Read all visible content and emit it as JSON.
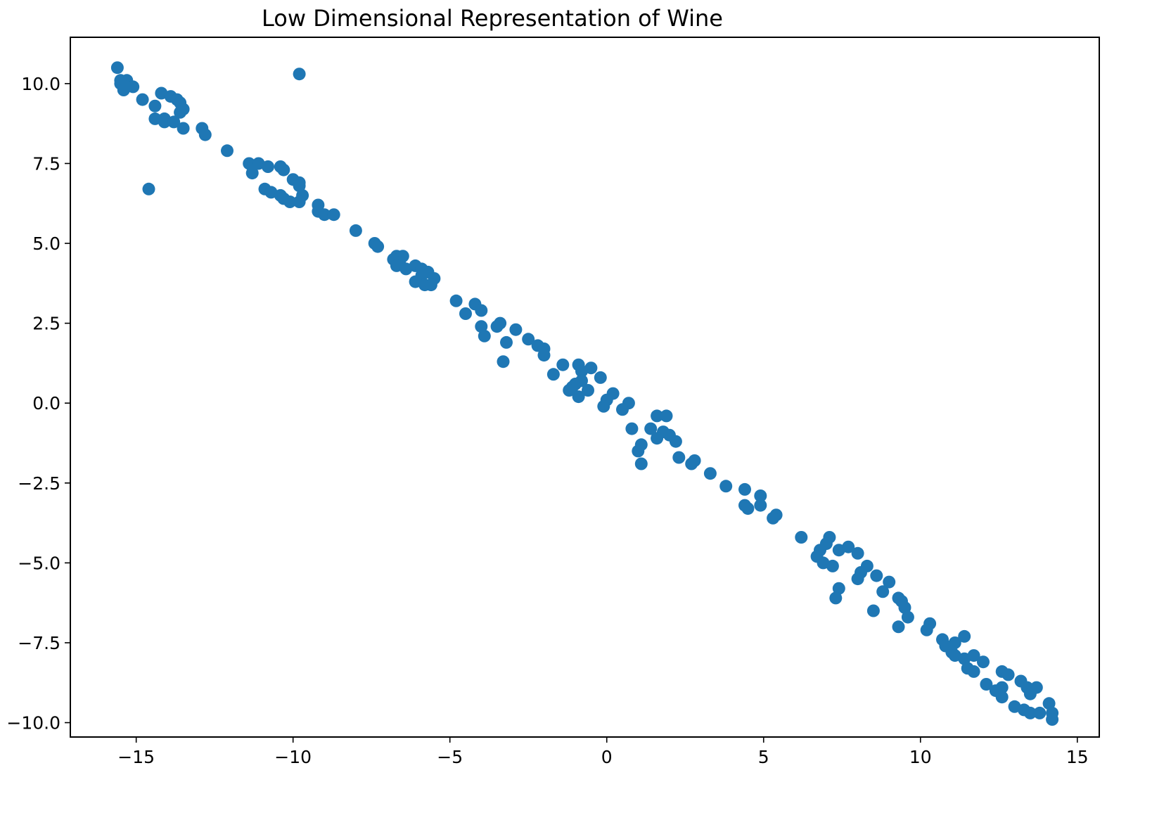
{
  "chart_data": {
    "type": "scatter",
    "title": "Low Dimensional Representation of Wine",
    "xlabel": "",
    "ylabel": "",
    "xlim": [
      -17.1,
      15.7
    ],
    "ylim": [
      -10.45,
      11.45
    ],
    "grid": false,
    "legend": "none",
    "point_color": "#1f77b4",
    "x_ticks": [
      {
        "value": -15,
        "label": "−15"
      },
      {
        "value": -10,
        "label": "−10"
      },
      {
        "value": -5,
        "label": "−5"
      },
      {
        "value": 0,
        "label": "0"
      },
      {
        "value": 5,
        "label": "5"
      },
      {
        "value": 10,
        "label": "10"
      },
      {
        "value": 15,
        "label": "15"
      }
    ],
    "y_ticks": [
      {
        "value": 10.0,
        "label": "10.0"
      },
      {
        "value": 7.5,
        "label": "7.5"
      },
      {
        "value": 5.0,
        "label": "5.0"
      },
      {
        "value": 2.5,
        "label": "2.5"
      },
      {
        "value": 0.0,
        "label": "0.0"
      },
      {
        "value": -2.5,
        "label": "−2.5"
      },
      {
        "value": -5.0,
        "label": "−5.0"
      },
      {
        "value": -7.5,
        "label": "−7.5"
      },
      {
        "value": -10.0,
        "label": "−10.0"
      }
    ],
    "series": [
      {
        "points": [
          [
            -15.6,
            10.5
          ],
          [
            -15.5,
            10.1
          ],
          [
            -15.3,
            10.1
          ],
          [
            -15.5,
            10.0
          ],
          [
            -15.4,
            9.8
          ],
          [
            -15.1,
            9.9
          ],
          [
            -14.8,
            9.5
          ],
          [
            -14.2,
            9.7
          ],
          [
            -13.9,
            9.6
          ],
          [
            -13.7,
            9.5
          ],
          [
            -13.6,
            9.4
          ],
          [
            -13.5,
            9.2
          ],
          [
            -13.6,
            9.1
          ],
          [
            -14.4,
            9.3
          ],
          [
            -14.1,
            8.9
          ],
          [
            -14.4,
            8.9
          ],
          [
            -14.1,
            8.8
          ],
          [
            -13.8,
            8.8
          ],
          [
            -13.5,
            8.6
          ],
          [
            -12.9,
            8.6
          ],
          [
            -12.8,
            8.4
          ],
          [
            -14.6,
            6.7
          ],
          [
            -9.8,
            10.3
          ],
          [
            -12.1,
            7.9
          ],
          [
            -11.4,
            7.5
          ],
          [
            -11.1,
            7.5
          ],
          [
            -10.8,
            7.4
          ],
          [
            -10.4,
            7.4
          ],
          [
            -10.3,
            7.3
          ],
          [
            -11.3,
            7.2
          ],
          [
            -10.0,
            7.0
          ],
          [
            -9.8,
            6.9
          ],
          [
            -9.8,
            6.8
          ],
          [
            -10.9,
            6.7
          ],
          [
            -10.7,
            6.6
          ],
          [
            -10.4,
            6.5
          ],
          [
            -10.3,
            6.4
          ],
          [
            -10.1,
            6.3
          ],
          [
            -9.7,
            6.5
          ],
          [
            -9.8,
            6.3
          ],
          [
            -9.2,
            6.2
          ],
          [
            -9.2,
            6.0
          ],
          [
            -9.0,
            5.9
          ],
          [
            -8.7,
            5.9
          ],
          [
            -8.0,
            5.4
          ],
          [
            -7.4,
            5.0
          ],
          [
            -7.3,
            4.9
          ],
          [
            -6.7,
            4.6
          ],
          [
            -6.5,
            4.6
          ],
          [
            -6.8,
            4.5
          ],
          [
            -6.6,
            4.4
          ],
          [
            -6.7,
            4.3
          ],
          [
            -6.4,
            4.2
          ],
          [
            -6.1,
            4.3
          ],
          [
            -5.9,
            4.2
          ],
          [
            -5.7,
            4.1
          ],
          [
            -5.9,
            4.0
          ],
          [
            -6.1,
            3.8
          ],
          [
            -5.5,
            3.9
          ],
          [
            -5.8,
            3.7
          ],
          [
            -5.6,
            3.7
          ],
          [
            -4.8,
            3.2
          ],
          [
            -4.2,
            3.1
          ],
          [
            -4.0,
            2.9
          ],
          [
            -4.5,
            2.8
          ],
          [
            -3.4,
            2.5
          ],
          [
            -3.5,
            2.4
          ],
          [
            -4.0,
            2.4
          ],
          [
            -2.9,
            2.3
          ],
          [
            -3.9,
            2.1
          ],
          [
            -2.5,
            2.0
          ],
          [
            -2.2,
            1.8
          ],
          [
            -2.0,
            1.7
          ],
          [
            -3.2,
            1.9
          ],
          [
            -2.0,
            1.5
          ],
          [
            -3.3,
            1.3
          ],
          [
            -1.4,
            1.2
          ],
          [
            -0.9,
            1.2
          ],
          [
            -0.5,
            1.1
          ],
          [
            -0.8,
            1.0
          ],
          [
            -1.7,
            0.9
          ],
          [
            -0.2,
            0.8
          ],
          [
            -0.8,
            0.7
          ],
          [
            -1.0,
            0.6
          ],
          [
            -1.1,
            0.5
          ],
          [
            -1.2,
            0.4
          ],
          [
            -0.6,
            0.4
          ],
          [
            -0.9,
            0.2
          ],
          [
            0.2,
            0.3
          ],
          [
            0.0,
            0.1
          ],
          [
            0.7,
            0.0
          ],
          [
            -0.1,
            -0.1
          ],
          [
            0.5,
            -0.2
          ],
          [
            1.6,
            -0.4
          ],
          [
            1.9,
            -0.4
          ],
          [
            0.8,
            -0.8
          ],
          [
            1.4,
            -0.8
          ],
          [
            1.8,
            -0.9
          ],
          [
            2.0,
            -1.0
          ],
          [
            1.6,
            -1.1
          ],
          [
            2.2,
            -1.2
          ],
          [
            1.1,
            -1.3
          ],
          [
            1.0,
            -1.5
          ],
          [
            2.3,
            -1.7
          ],
          [
            1.1,
            -1.9
          ],
          [
            2.8,
            -1.8
          ],
          [
            2.7,
            -1.9
          ],
          [
            3.3,
            -2.2
          ],
          [
            3.8,
            -2.6
          ],
          [
            4.4,
            -2.7
          ],
          [
            4.9,
            -2.9
          ],
          [
            4.4,
            -3.2
          ],
          [
            4.9,
            -3.2
          ],
          [
            4.5,
            -3.3
          ],
          [
            5.4,
            -3.5
          ],
          [
            5.3,
            -3.6
          ],
          [
            6.2,
            -4.2
          ],
          [
            7.1,
            -4.2
          ],
          [
            7.0,
            -4.4
          ],
          [
            6.8,
            -4.6
          ],
          [
            7.4,
            -4.6
          ],
          [
            7.7,
            -4.5
          ],
          [
            6.7,
            -4.8
          ],
          [
            8.0,
            -4.7
          ],
          [
            6.9,
            -5.0
          ],
          [
            7.2,
            -5.1
          ],
          [
            8.3,
            -5.1
          ],
          [
            8.1,
            -5.3
          ],
          [
            8.6,
            -5.4
          ],
          [
            8.0,
            -5.5
          ],
          [
            9.0,
            -5.6
          ],
          [
            7.4,
            -5.8
          ],
          [
            8.8,
            -5.9
          ],
          [
            7.3,
            -6.1
          ],
          [
            9.3,
            -6.1
          ],
          [
            9.4,
            -6.2
          ],
          [
            9.5,
            -6.4
          ],
          [
            8.5,
            -6.5
          ],
          [
            9.6,
            -6.7
          ],
          [
            9.3,
            -7.0
          ],
          [
            10.3,
            -6.9
          ],
          [
            10.2,
            -7.1
          ],
          [
            10.7,
            -7.4
          ],
          [
            11.4,
            -7.3
          ],
          [
            11.1,
            -7.5
          ],
          [
            10.8,
            -7.6
          ],
          [
            11.0,
            -7.8
          ],
          [
            11.1,
            -7.9
          ],
          [
            11.7,
            -7.9
          ],
          [
            11.4,
            -8.0
          ],
          [
            12.0,
            -8.1
          ],
          [
            11.5,
            -8.3
          ],
          [
            11.7,
            -8.4
          ],
          [
            12.6,
            -8.4
          ],
          [
            12.8,
            -8.5
          ],
          [
            12.1,
            -8.8
          ],
          [
            13.2,
            -8.7
          ],
          [
            12.6,
            -8.9
          ],
          [
            13.4,
            -8.9
          ],
          [
            13.7,
            -8.9
          ],
          [
            12.4,
            -9.0
          ],
          [
            13.5,
            -9.1
          ],
          [
            12.6,
            -9.2
          ],
          [
            14.1,
            -9.4
          ],
          [
            13.0,
            -9.5
          ],
          [
            13.3,
            -9.6
          ],
          [
            13.5,
            -9.7
          ],
          [
            13.8,
            -9.7
          ],
          [
            14.2,
            -9.7
          ],
          [
            14.2,
            -9.9
          ]
        ]
      }
    ]
  }
}
